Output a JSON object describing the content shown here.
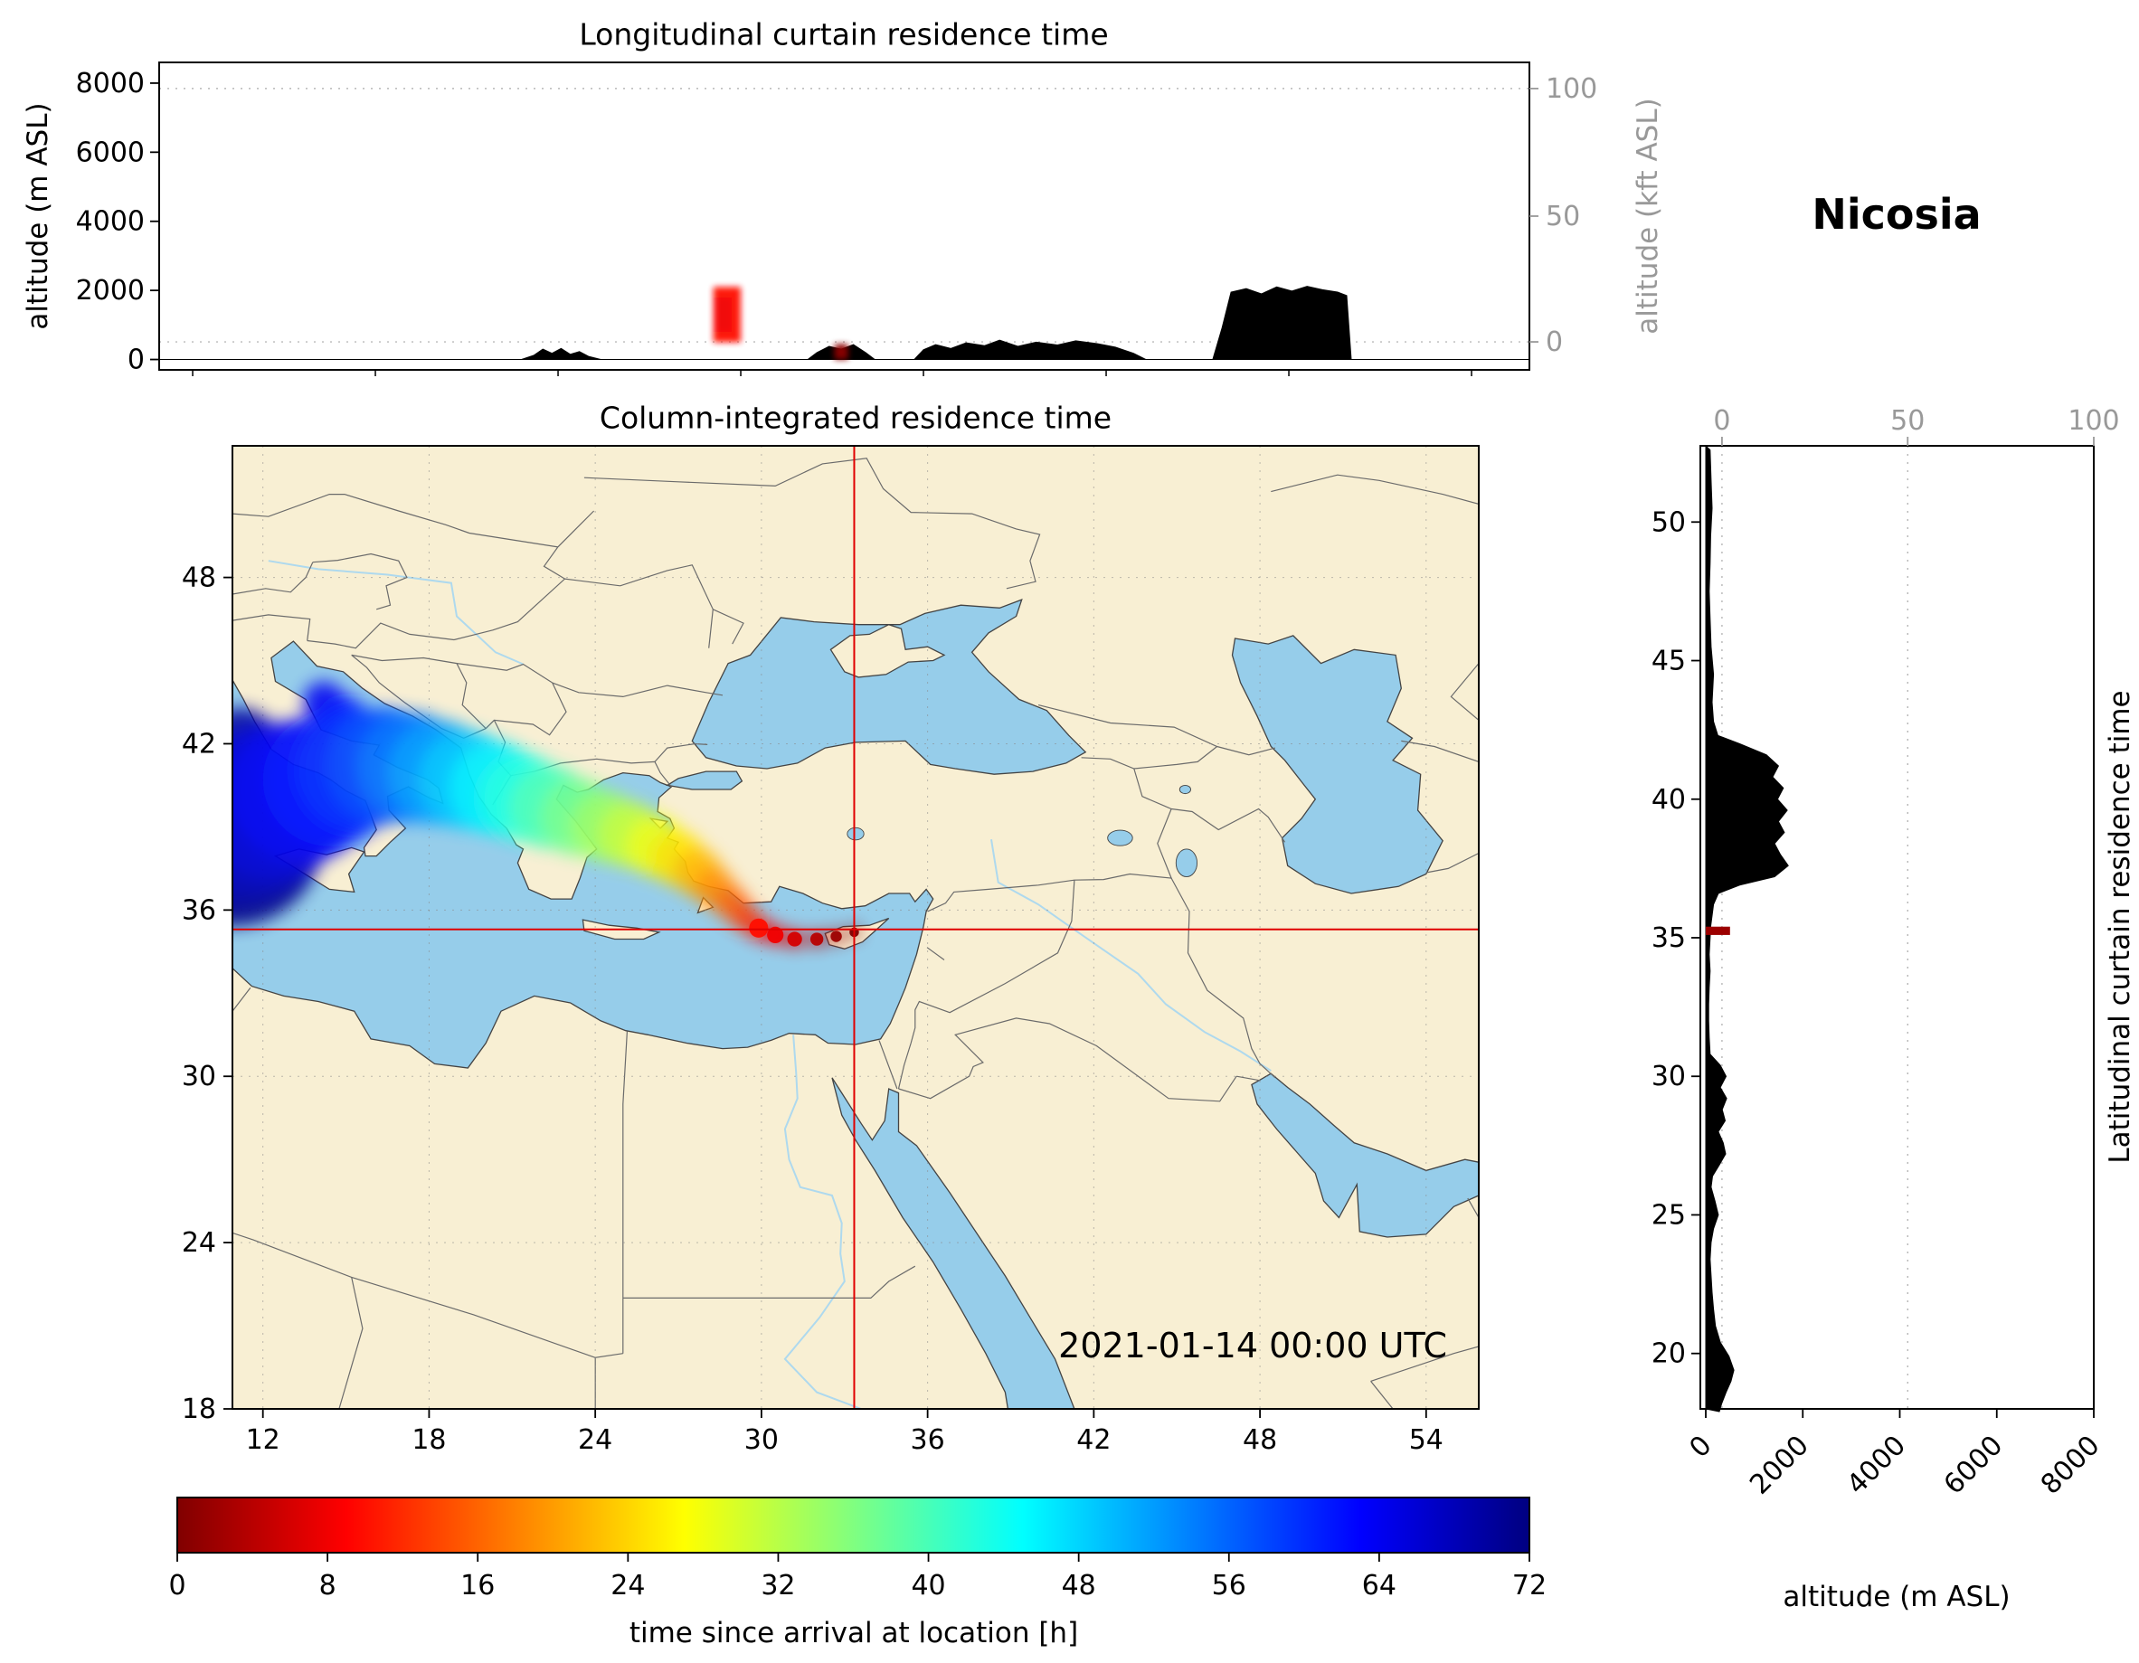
{
  "labels": {
    "top_title": "Longitudinal curtain residence time",
    "map_title": "Column-integrated residence time",
    "station": "Nicosia",
    "datetime": "2021-01-14 00:00 UTC",
    "ylabel_m": "altitude (m ASL)",
    "ylabel_kft": "altitude (kft ASL)",
    "rp_xlabel": "altitude (m ASL)",
    "rp_side_label": "Latitudinal curtain residence time",
    "cb_label": "time since arrival at location [h]"
  },
  "chart_data": [
    {
      "type": "area",
      "name": "longitudinal_curtain",
      "title": "Longitudinal curtain residence time",
      "ylabel": "altitude (m ASL)",
      "ylabel_right": "altitude (kft ASL)",
      "xlim": [
        10.9,
        55.9
      ],
      "ylim": [
        -300,
        8600
      ],
      "yticks": [
        0,
        2000,
        4000,
        6000,
        8000
      ],
      "yticks_right": [
        0,
        50,
        100
      ],
      "xticks": [
        12,
        18,
        24,
        30,
        36,
        42,
        48,
        54
      ],
      "terrain": [
        [
          10.9,
          0
        ],
        [
          22.8,
          0
        ],
        [
          23.2,
          120
        ],
        [
          23.5,
          300
        ],
        [
          23.8,
          180
        ],
        [
          24.1,
          320
        ],
        [
          24.4,
          150
        ],
        [
          24.7,
          230
        ],
        [
          25.0,
          90
        ],
        [
          25.4,
          0
        ],
        [
          32.2,
          0
        ],
        [
          32.5,
          200
        ],
        [
          32.9,
          380
        ],
        [
          33.3,
          300
        ],
        [
          33.7,
          430
        ],
        [
          34.1,
          200
        ],
        [
          34.4,
          0
        ],
        [
          35.7,
          0
        ],
        [
          36.0,
          280
        ],
        [
          36.4,
          430
        ],
        [
          36.9,
          320
        ],
        [
          37.4,
          480
        ],
        [
          38.0,
          400
        ],
        [
          38.5,
          560
        ],
        [
          39.1,
          380
        ],
        [
          39.7,
          500
        ],
        [
          40.4,
          420
        ],
        [
          41.0,
          540
        ],
        [
          41.7,
          460
        ],
        [
          42.3,
          360
        ],
        [
          42.9,
          180
        ],
        [
          43.3,
          0
        ],
        [
          45.5,
          0
        ],
        [
          45.8,
          900
        ],
        [
          46.1,
          1950
        ],
        [
          46.6,
          2050
        ],
        [
          47.1,
          1900
        ],
        [
          47.6,
          2100
        ],
        [
          48.1,
          1980
        ],
        [
          48.6,
          2120
        ],
        [
          49.1,
          2020
        ],
        [
          49.6,
          1950
        ],
        [
          49.9,
          1850
        ],
        [
          50.05,
          0
        ],
        [
          55.9,
          0
        ]
      ],
      "plume_cells": [
        {
          "lon": 29.55,
          "alt_bottom": 500,
          "alt_top": 2100,
          "width_deg": 0.9,
          "age_h": 10
        },
        {
          "lon": 29.45,
          "alt_bottom": 800,
          "alt_top": 1800,
          "width_deg": 0.5,
          "age_h": 8
        },
        {
          "lon": 33.3,
          "alt_bottom": 0,
          "alt_top": 450,
          "width_deg": 0.45,
          "age_h": 1
        }
      ]
    },
    {
      "type": "map",
      "name": "column_integrated",
      "title": "Column-integrated residence time",
      "extent": {
        "lon": [
          10.9,
          55.9
        ],
        "lat": [
          18,
          52.75
        ]
      },
      "xticks": [
        12,
        18,
        24,
        30,
        36,
        42,
        48,
        54
      ],
      "yticks": [
        18,
        24,
        30,
        36,
        42,
        48
      ],
      "receptor": {
        "name": "Nicosia",
        "lon": 33.35,
        "lat": 35.3
      },
      "timestamp": "2021-01-14 00:00 UTC",
      "plume": [
        [
          33.35,
          35.2,
          0,
          0.22
        ],
        [
          32.7,
          35.05,
          2,
          0.26
        ],
        [
          32.0,
          34.95,
          4,
          0.3
        ],
        [
          31.2,
          34.95,
          6,
          0.34
        ],
        [
          30.5,
          35.1,
          8,
          0.38
        ],
        [
          29.9,
          35.35,
          10,
          0.44
        ],
        [
          29.4,
          35.75,
          13,
          0.52
        ],
        [
          28.9,
          36.25,
          16,
          0.62
        ],
        [
          28.3,
          36.8,
          19,
          0.74
        ],
        [
          27.7,
          37.35,
          22,
          0.88
        ],
        [
          27.0,
          37.85,
          25,
          1.0
        ],
        [
          26.2,
          38.3,
          28,
          1.1
        ],
        [
          25.3,
          38.7,
          31,
          1.2
        ],
        [
          24.4,
          39.0,
          34,
          1.3
        ],
        [
          23.4,
          39.35,
          37,
          1.4
        ],
        [
          22.4,
          39.7,
          40,
          1.5
        ],
        [
          21.4,
          40.05,
          43,
          1.6
        ],
        [
          20.4,
          40.4,
          46,
          1.7
        ],
        [
          19.4,
          40.7,
          49,
          1.8
        ],
        [
          18.4,
          40.95,
          52,
          1.9
        ],
        [
          17.4,
          41.15,
          55,
          2.0
        ],
        [
          16.4,
          41.2,
          58,
          2.1
        ],
        [
          15.4,
          41.05,
          60,
          2.2
        ],
        [
          14.4,
          40.7,
          62,
          2.4
        ],
        [
          13.4,
          40.3,
          64,
          2.6
        ],
        [
          12.4,
          39.9,
          66,
          2.8
        ],
        [
          11.6,
          39.5,
          68,
          3.0
        ],
        [
          11.0,
          39.1,
          70,
          3.2
        ],
        [
          10.9,
          38.7,
          72,
          3.3
        ],
        [
          16.2,
          41.9,
          58,
          1.2
        ],
        [
          15.6,
          42.3,
          60,
          1.0
        ],
        [
          14.9,
          42.9,
          62,
          0.85
        ],
        [
          14.2,
          43.5,
          64,
          0.75
        ],
        [
          12.0,
          41.5,
          68,
          1.3
        ],
        [
          11.2,
          41.9,
          70,
          1.4
        ],
        [
          11.0,
          40.9,
          71,
          1.4
        ],
        [
          12.3,
          38.6,
          70,
          1.0
        ],
        [
          11.6,
          38.1,
          71,
          1.1
        ],
        [
          11.0,
          37.6,
          72,
          1.2
        ],
        [
          11.0,
          36.9,
          72,
          0.9
        ]
      ]
    },
    {
      "type": "area",
      "name": "latitudinal_curtain",
      "side_label": "Latitudinal curtain residence time",
      "xlabel": "altitude (m ASL)",
      "xlim": [
        0,
        8000
      ],
      "xticks": [
        0,
        2000,
        4000,
        6000,
        8000
      ],
      "xticks_top": [
        0,
        50,
        100
      ],
      "ylim": [
        18,
        52.75
      ],
      "yticks": [
        20,
        25,
        30,
        35,
        40,
        45,
        50
      ],
      "terrain": [
        [
          52.6,
          90
        ],
        [
          51.5,
          110
        ],
        [
          50.5,
          130
        ],
        [
          49.5,
          100
        ],
        [
          48.5,
          90
        ],
        [
          47.5,
          70
        ],
        [
          46.5,
          90
        ],
        [
          45.5,
          110
        ],
        [
          44.5,
          160
        ],
        [
          43.5,
          130
        ],
        [
          42.8,
          160
        ],
        [
          42.3,
          250
        ],
        [
          42.0,
          700
        ],
        [
          41.6,
          1250
        ],
        [
          41.2,
          1500
        ],
        [
          40.8,
          1380
        ],
        [
          40.4,
          1600
        ],
        [
          40.0,
          1480
        ],
        [
          39.6,
          1680
        ],
        [
          39.2,
          1500
        ],
        [
          38.8,
          1620
        ],
        [
          38.4,
          1420
        ],
        [
          38.0,
          1540
        ],
        [
          37.6,
          1700
        ],
        [
          37.2,
          1420
        ],
        [
          36.9,
          700
        ],
        [
          36.6,
          260
        ],
        [
          36.2,
          160
        ],
        [
          35.8,
          130
        ],
        [
          35.4,
          100
        ],
        [
          35.0,
          90
        ],
        [
          34.4,
          70
        ],
        [
          33.8,
          90
        ],
        [
          33.2,
          70
        ],
        [
          32.6,
          60
        ],
        [
          32.0,
          60
        ],
        [
          31.4,
          70
        ],
        [
          30.8,
          90
        ],
        [
          30.4,
          300
        ],
        [
          30.0,
          420
        ],
        [
          29.6,
          300
        ],
        [
          29.2,
          430
        ],
        [
          28.8,
          340
        ],
        [
          28.4,
          400
        ],
        [
          28.0,
          260
        ],
        [
          27.6,
          360
        ],
        [
          27.2,
          410
        ],
        [
          26.8,
          280
        ],
        [
          26.4,
          140
        ],
        [
          26.0,
          110
        ],
        [
          25.5,
          190
        ],
        [
          25.0,
          260
        ],
        [
          24.5,
          160
        ],
        [
          24.0,
          110
        ],
        [
          23.4,
          90
        ],
        [
          22.8,
          110
        ],
        [
          22.2,
          130
        ],
        [
          21.6,
          160
        ],
        [
          21.0,
          200
        ],
        [
          20.4,
          300
        ],
        [
          19.9,
          480
        ],
        [
          19.4,
          580
        ],
        [
          19.0,
          520
        ],
        [
          18.6,
          420
        ],
        [
          18.2,
          330
        ],
        [
          17.9,
          280
        ]
      ],
      "plume_cells": [
        {
          "lat": 35.25,
          "alt_left": 0,
          "alt_right": 500,
          "height_deg": 0.3,
          "age_h": 2
        }
      ]
    },
    {
      "type": "colorbar",
      "label": "time since arrival at location [h]",
      "min": 0,
      "max": 72,
      "ticks": [
        0,
        8,
        16,
        24,
        32,
        40,
        48,
        56,
        64,
        72
      ],
      "colormap": "jet_r"
    }
  ]
}
